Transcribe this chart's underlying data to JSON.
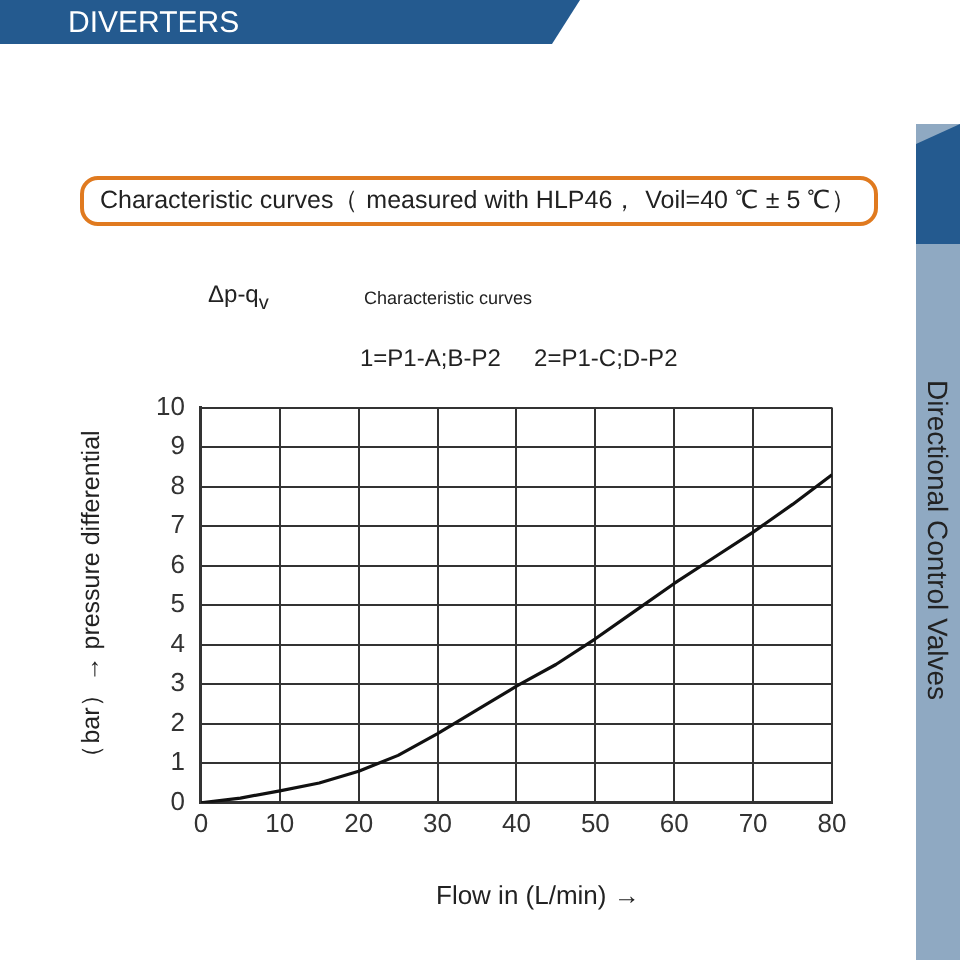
{
  "chart_data": {
    "type": "line",
    "title": "DIVERTERS",
    "subtitle": "Characteristic curves（ measured with HLP46， Voil=40 ℃ ± 5 ℃）",
    "xlabel": "Flow in (L/min) →",
    "ylabel": "（bar）→ pressure differential",
    "annotations": [
      "Δp-q$_{v}$",
      "Characteristic curves",
      "1=P1-A;B-P2     2=P1-C;D-P2",
      "Directional Control Valves"
    ],
    "x": [
      0,
      5,
      10,
      15,
      20,
      25,
      30,
      35,
      40,
      45,
      50,
      55,
      60,
      65,
      70,
      75,
      80
    ],
    "series": [
      {
        "color": "#111111",
        "values": [
          0,
          0.12,
          0.3,
          0.5,
          0.8,
          1.2,
          1.75,
          2.35,
          2.95,
          3.5,
          4.15,
          4.85,
          5.55,
          6.2,
          6.85,
          7.55,
          8.3
        ]
      }
    ],
    "xlim": [
      0,
      80
    ],
    "xticks": [
      0,
      10,
      20,
      30,
      40,
      50,
      60,
      70,
      80
    ],
    "ylim": [
      0,
      10
    ],
    "yticks": [
      0,
      1,
      2,
      3,
      4,
      5,
      6,
      7,
      8,
      9,
      10
    ],
    "grid": true,
    "legend": false,
    "marker": "none",
    "line_style": "solid"
  }
}
